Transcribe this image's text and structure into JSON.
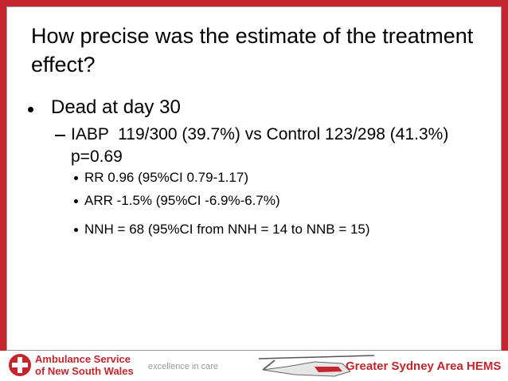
{
  "slide": {
    "title": "How precise was the estimate of the treatment effect?",
    "bullets": [
      {
        "text": "Dead at day 30",
        "children": [
          {
            "text": "IABP  119/300 (39.7%) vs Control 123/298 (41.3%) p=0.69",
            "children": [
              {
                "text": "RR 0.96 (95%CI 0.79-1.17)"
              },
              {
                "text": "ARR -1.5% (95%CI -6.9%-6.7%)"
              },
              {
                "text": "NNH = 68 (95%CI from NNH = 14 to NNB = 15)"
              }
            ]
          }
        ]
      }
    ]
  },
  "footer": {
    "org_line1": "Ambulance Service",
    "org_line2": "of New South Wales",
    "tagline": "excellence in care",
    "unit": "Greater Sydney Area HEMS"
  }
}
